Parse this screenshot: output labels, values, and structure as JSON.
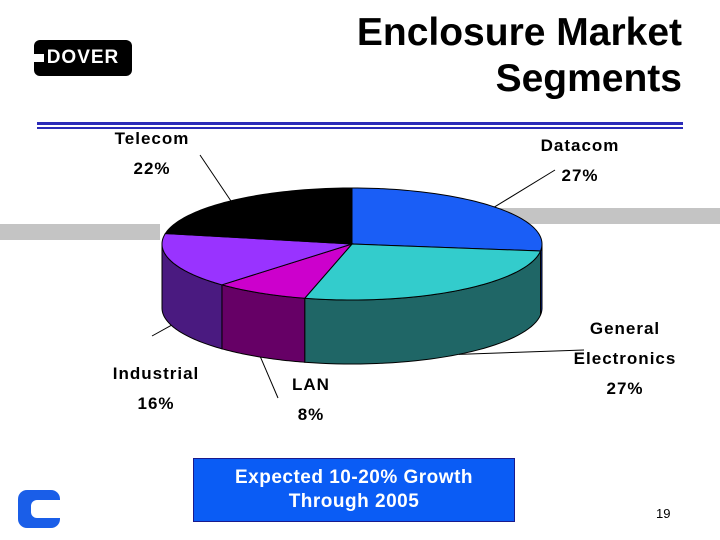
{
  "logo": {
    "text": "DOVER"
  },
  "title": {
    "line1": "Enclosure Market",
    "line2": "Segments"
  },
  "chart_data": {
    "type": "pie",
    "title": "",
    "slices": [
      {
        "label": "Datacom",
        "value": 27,
        "display": "27%",
        "color": "#1a5ef6",
        "side": "#0a2a9c"
      },
      {
        "label": "General Electronics",
        "value": 27,
        "display": "27%",
        "color": "#33cccc",
        "side": "#1f6666"
      },
      {
        "label": "LAN",
        "value": 8,
        "display": "8%",
        "color": "#cc00cc",
        "side": "#660066"
      },
      {
        "label": "Industrial",
        "value": 16,
        "display": "16%",
        "color": "#9933ff",
        "side": "#4a1a80"
      },
      {
        "label": "Telecom",
        "value": 22,
        "display": "22%",
        "color": "#000000",
        "side": "#000000"
      }
    ]
  },
  "labels": {
    "telecom": {
      "name": "Telecom",
      "pct": "22%"
    },
    "datacom": {
      "name": "Datacom",
      "pct": "27%"
    },
    "general": {
      "name1": "General",
      "name2": "Electronics",
      "pct": "27%"
    },
    "industrial": {
      "name": "Industrial",
      "pct": "16%"
    },
    "lan": {
      "name": "LAN",
      "pct": "8%"
    }
  },
  "callout": {
    "line1": "Expected 10-20% Growth",
    "line2": "Through 2005"
  },
  "page_number": "19"
}
